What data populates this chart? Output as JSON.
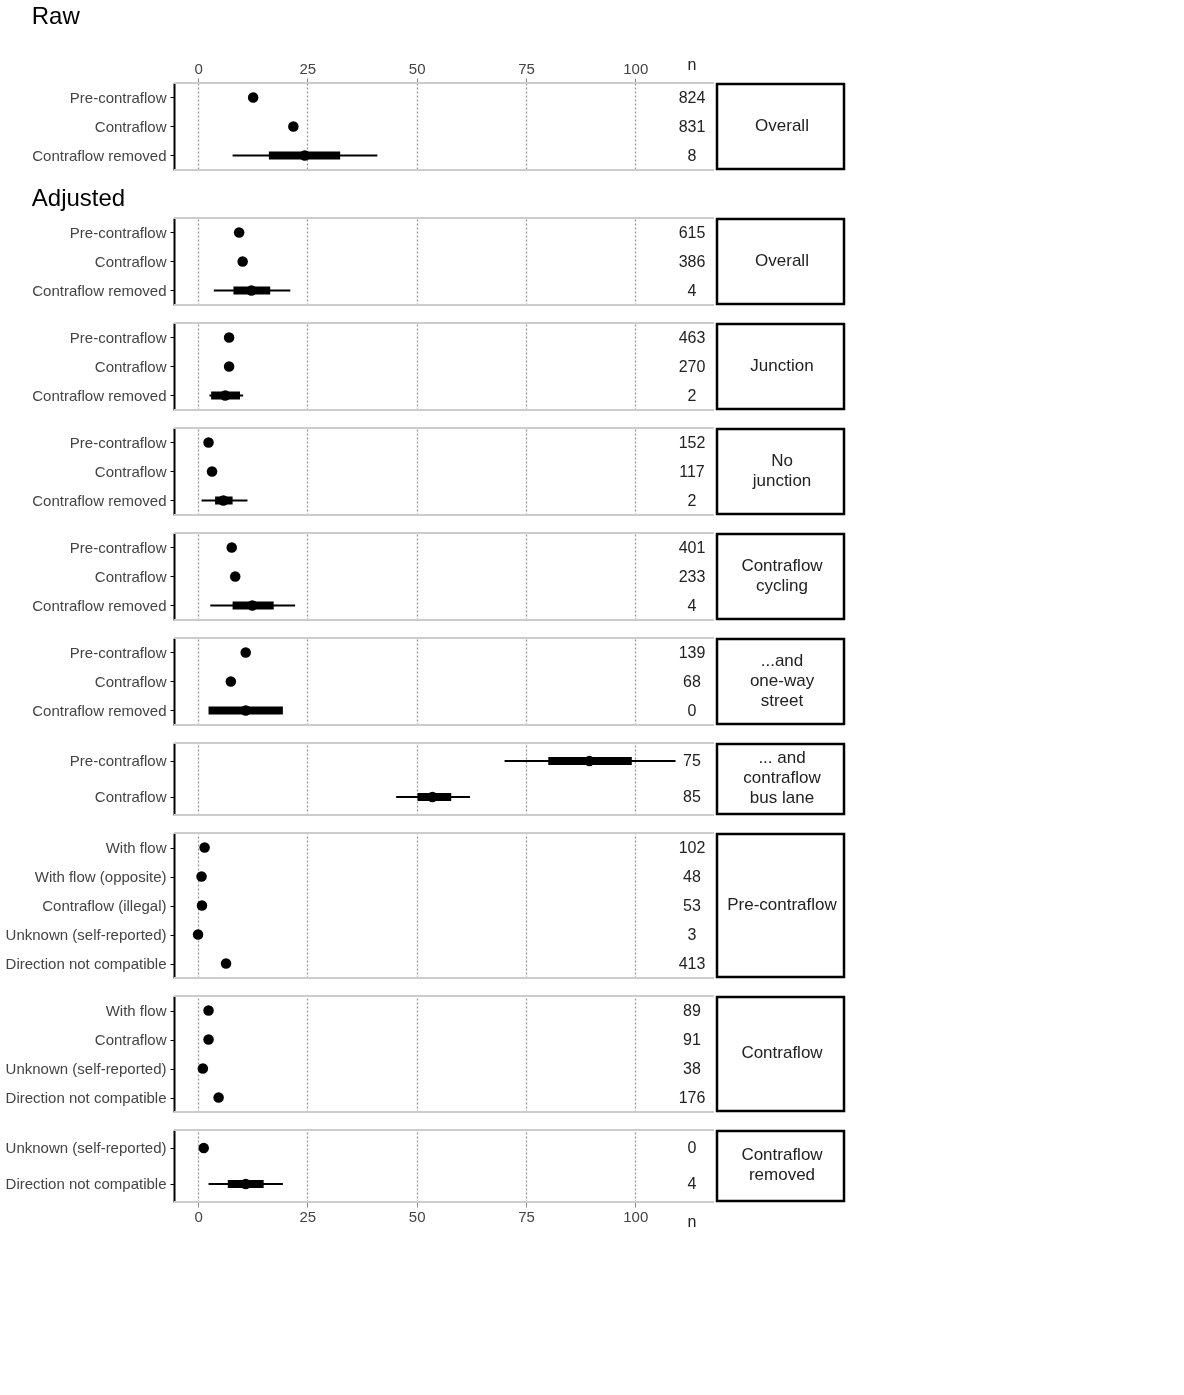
{
  "chart_data": [
    {
      "type": "scatter",
      "title": "Raw",
      "orientation": "horizontal",
      "marker": "circle",
      "grid": "x",
      "xlim": [
        -5.5,
        118
      ],
      "xticks": [
        0,
        25,
        50,
        75,
        100
      ],
      "categories": [
        "Pre-contraflow",
        "Contraflow",
        "Contraflow removed"
      ],
      "series": [
        {
          "type": "bar",
          "color": "#000000",
          "base": [
            null,
            null,
            16.2
          ],
          "values": [
            null,
            null,
            16.3
          ]
        },
        {
          "color": "#000000",
          "values": [
            12.6,
            21.8,
            24.4
          ],
          "errors": [
            null,
            null,
            [
              7.9,
              41.0
            ]
          ]
        }
      ],
      "annotations": [
        "824",
        "831",
        "8",
        "Overall",
        "n"
      ]
    },
    {
      "type": "scatter",
      "title": "Adjusted",
      "orientation": "horizontal",
      "marker": "circle",
      "grid": "x",
      "tick_labels": "y",
      "xlim": [
        -5.5,
        118
      ],
      "xticks": [
        0,
        25,
        50,
        75,
        100
      ],
      "categories": [
        "Pre-contraflow",
        "Contraflow",
        "Contraflow removed"
      ],
      "series": [
        {
          "type": "bar",
          "color": "#000000",
          "base": [
            null,
            null,
            8.1
          ],
          "values": [
            null,
            null,
            8.4
          ]
        },
        {
          "color": "#000000",
          "values": [
            9.4,
            10.2,
            12.2
          ],
          "errors": [
            null,
            null,
            [
              3.6,
              21.1
            ]
          ]
        }
      ],
      "annotations": [
        "615",
        "386",
        "4",
        "Overall"
      ]
    },
    {
      "type": "scatter",
      "orientation": "horizontal",
      "marker": "circle",
      "grid": "x",
      "tick_labels": "y",
      "xlim": [
        -5.5,
        118
      ],
      "xticks": [
        0,
        25,
        50,
        75,
        100
      ],
      "categories": [
        "Pre-contraflow",
        "Contraflow",
        "Contraflow removed"
      ],
      "series": [
        {
          "type": "bar",
          "color": "#000000",
          "base": [
            null,
            null,
            3.0
          ],
          "values": [
            null,
            null,
            6.6
          ]
        },
        {
          "color": "#000000",
          "values": [
            7.1,
            7.1,
            6.2
          ],
          "errors": [
            null,
            null,
            [
              2.6,
              10.3
            ]
          ]
        }
      ],
      "annotations": [
        "463",
        "270",
        "2",
        "Junction"
      ]
    },
    {
      "type": "scatter",
      "orientation": "horizontal",
      "marker": "circle",
      "grid": "x",
      "tick_labels": "y",
      "xlim": [
        -5.5,
        118
      ],
      "xticks": [
        0,
        25,
        50,
        75,
        100
      ],
      "categories": [
        "Pre-contraflow",
        "Contraflow",
        "Contraflow removed"
      ],
      "series": [
        {
          "type": "bar",
          "color": "#000000",
          "base": [
            null,
            null,
            3.9
          ],
          "values": [
            null,
            null,
            4.0
          ]
        },
        {
          "color": "#000000",
          "values": [
            2.4,
            3.2,
            5.8
          ],
          "errors": [
            null,
            null,
            [
              0.8,
              11.3
            ]
          ]
        }
      ],
      "annotations": [
        "152",
        "117",
        "2",
        "No\njunction"
      ]
    },
    {
      "type": "scatter",
      "orientation": "horizontal",
      "marker": "circle",
      "grid": "x",
      "tick_labels": "y",
      "xlim": [
        -5.5,
        118
      ],
      "xticks": [
        0,
        25,
        50,
        75,
        100
      ],
      "categories": [
        "Pre-contraflow",
        "Contraflow",
        "Contraflow removed"
      ],
      "series": [
        {
          "type": "bar",
          "color": "#000000",
          "base": [
            null,
            null,
            7.9
          ],
          "values": [
            null,
            null,
            9.4
          ]
        },
        {
          "color": "#000000",
          "values": [
            7.7,
            8.5,
            12.4
          ],
          "errors": [
            null,
            null,
            [
              2.8,
              22.2
            ]
          ]
        }
      ],
      "annotations": [
        "401",
        "233",
        "4",
        "Contraflow\ncycling"
      ]
    },
    {
      "type": "scatter",
      "orientation": "horizontal",
      "marker": "circle",
      "grid": "x",
      "tick_labels": "y",
      "xlim": [
        -5.5,
        118
      ],
      "xticks": [
        0,
        25,
        50,
        75,
        100
      ],
      "categories": [
        "Pre-contraflow",
        "Contraflow",
        "Contraflow removed"
      ],
      "series": [
        {
          "type": "bar",
          "color": "#000000",
          "base": [
            null,
            null,
            2.4
          ],
          "values": [
            null,
            null,
            17.0
          ]
        },
        {
          "color": "#000000",
          "values": [
            10.9,
            7.5,
            10.9
          ],
          "errors": [
            [
              10.0,
              11.8
            ],
            null,
            null
          ]
        }
      ],
      "annotations": [
        "139",
        "68",
        "0",
        "...and\none-way\nstreet"
      ]
    },
    {
      "type": "scatter",
      "orientation": "horizontal",
      "marker": "circle",
      "grid": "x",
      "tick_labels": "y",
      "xlim": [
        -5.5,
        118
      ],
      "xticks": [
        0,
        25,
        50,
        75,
        100
      ],
      "categories": [
        "Pre-contraflow",
        "Contraflow"
      ],
      "series": [
        {
          "type": "bar",
          "color": "#000000",
          "base": [
            80.1,
            50.2
          ],
          "values": [
            19.1,
            7.7
          ]
        },
        {
          "color": "#000000",
          "values": [
            89.5,
            53.6
          ],
          "errors": [
            [
              70.1,
              109.2
            ],
            [
              45.3,
              62.2
            ]
          ]
        }
      ],
      "annotations": [
        "75",
        "85",
        "... and\ncontraflow\nbus lane"
      ]
    },
    {
      "type": "scatter",
      "orientation": "horizontal",
      "marker": "circle",
      "grid": "x",
      "tick_labels": "y",
      "xlim": [
        -5.5,
        118
      ],
      "xticks": [
        0,
        25,
        50,
        75,
        100
      ],
      "categories": [
        "With flow",
        "With flow (opposite)",
        "Contraflow (illegal)",
        "Unknown (self-reported)",
        "Direction not compatible"
      ],
      "series": [
        {
          "color": "#000000",
          "values": [
            1.5,
            0.8,
            0.9,
            0.0,
            6.4
          ]
        }
      ],
      "annotations": [
        "102",
        "48",
        "53",
        "3",
        "413",
        "Pre-contraflow"
      ]
    },
    {
      "type": "scatter",
      "orientation": "horizontal",
      "marker": "circle",
      "grid": "x",
      "tick_labels": "y",
      "xlim": [
        -5.5,
        118
      ],
      "xticks": [
        0,
        25,
        50,
        75,
        100
      ],
      "categories": [
        "With flow",
        "Contraflow",
        "Unknown (self-reported)",
        "Direction not compatible"
      ],
      "series": [
        {
          "color": "#000000",
          "values": [
            2.4,
            2.4,
            1.1,
            4.7
          ]
        }
      ],
      "annotations": [
        "89",
        "91",
        "38",
        "176",
        "Contraflow"
      ]
    },
    {
      "type": "scatter",
      "orientation": "horizontal",
      "marker": "circle",
      "grid": "x",
      "xlim": [
        -5.5,
        118
      ],
      "xticks": [
        0,
        25,
        50,
        75,
        100
      ],
      "categories": [
        "Unknown (self-reported)",
        "Direction not compatible"
      ],
      "series": [
        {
          "type": "bar",
          "color": "#000000",
          "base": [
            null,
            6.8
          ],
          "values": [
            null,
            8.2
          ]
        },
        {
          "color": "#000000",
          "values": [
            1.3,
            10.9
          ],
          "errors": [
            null,
            [
              2.4,
              19.4
            ]
          ]
        }
      ],
      "annotations": [
        "0",
        "4",
        "Contraflow\nremoved",
        "n"
      ]
    }
  ]
}
